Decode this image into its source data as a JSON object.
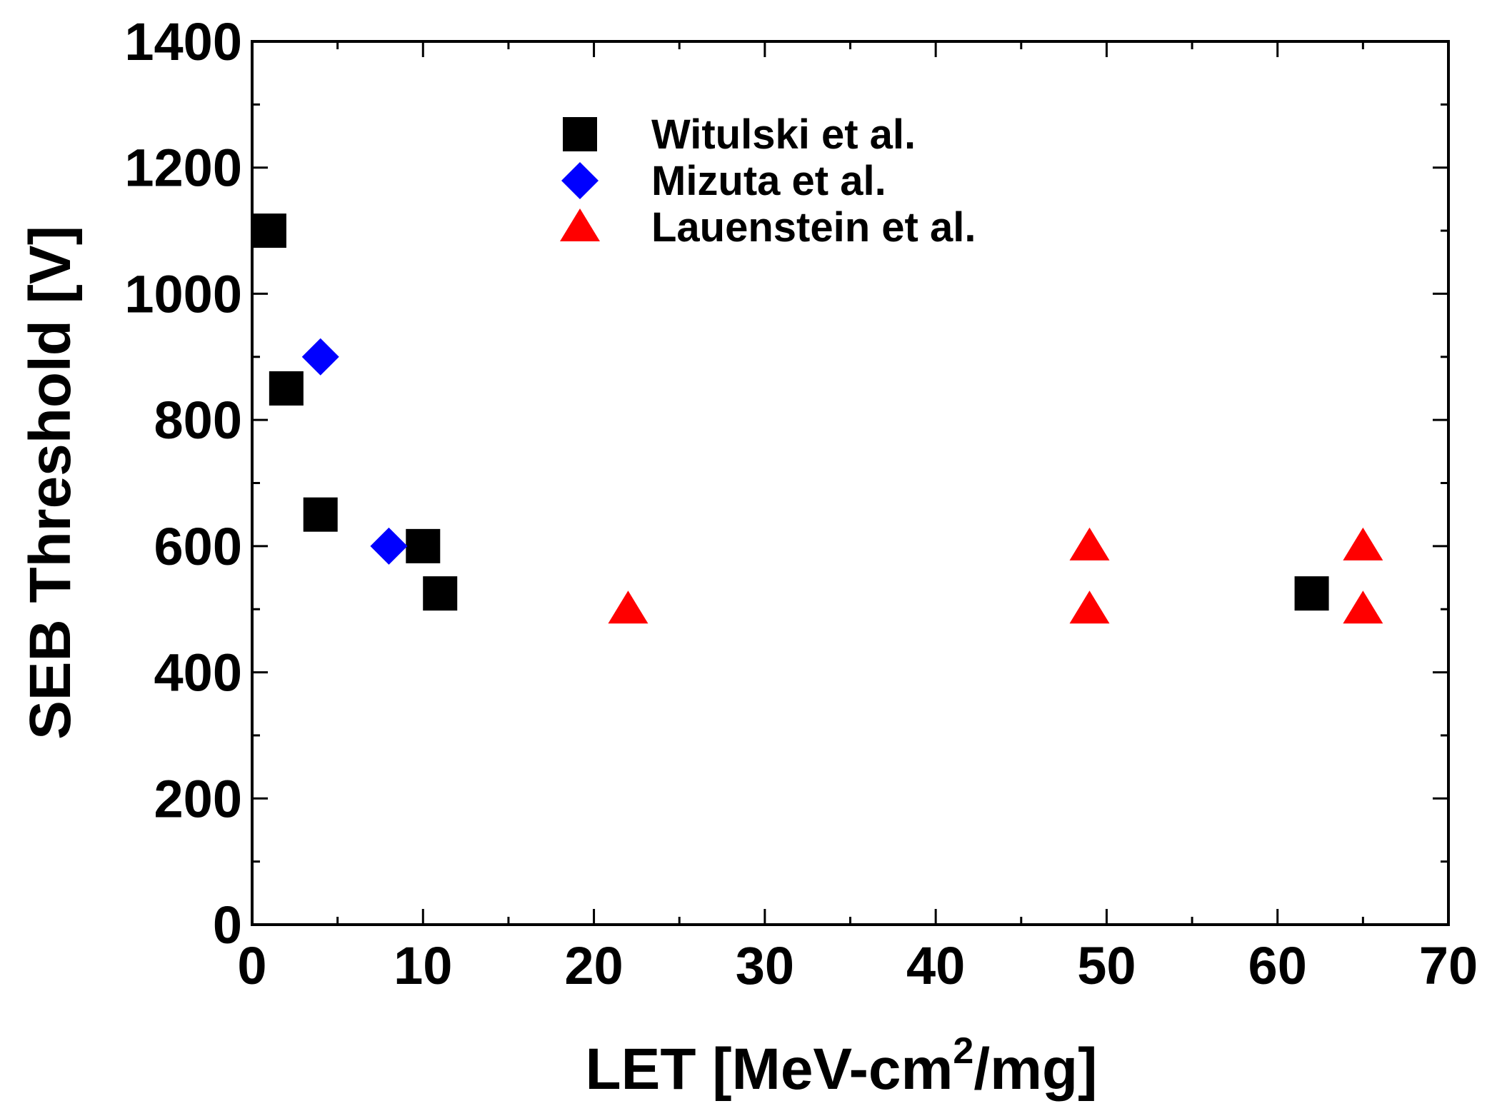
{
  "chart_data": {
    "type": "scatter",
    "title": "",
    "xlabel": "LET [MeV-cm",
    "xlabel_sup": "2",
    "xlabel_tail": "/mg]",
    "ylabel": "SEB Threshold [V]",
    "xlim": [
      0,
      70
    ],
    "ylim": [
      0,
      1400
    ],
    "x_ticks": [
      0,
      10,
      20,
      30,
      40,
      50,
      60,
      70
    ],
    "y_ticks": [
      0,
      200,
      400,
      600,
      800,
      1000,
      1200,
      1400
    ],
    "x_tick_labels": [
      "0",
      "10",
      "20",
      "30",
      "40",
      "50",
      "60",
      "70"
    ],
    "y_tick_labels": [
      "0",
      "200",
      "400",
      "600",
      "800",
      "1000",
      "1200",
      "1400"
    ],
    "x_minor_ticks": [
      5,
      15,
      25,
      35,
      45,
      55,
      65
    ],
    "y_minor_ticks": [
      100,
      300,
      500,
      700,
      900,
      1100,
      1300
    ],
    "grid": false,
    "legend_position": "top-center",
    "series": [
      {
        "name": "Witulski et al.",
        "marker": "square",
        "color": "#000000",
        "points": [
          {
            "x": 1,
            "y": 1100
          },
          {
            "x": 2,
            "y": 850
          },
          {
            "x": 4,
            "y": 650
          },
          {
            "x": 10,
            "y": 600
          },
          {
            "x": 11,
            "y": 525
          },
          {
            "x": 62,
            "y": 525
          }
        ]
      },
      {
        "name": "Mizuta et al.",
        "marker": "diamond",
        "color": "#0000ff",
        "points": [
          {
            "x": 4,
            "y": 900
          },
          {
            "x": 8,
            "y": 600
          }
        ]
      },
      {
        "name": "Lauenstein et al.",
        "marker": "triangle",
        "color": "#ff0000",
        "points": [
          {
            "x": 22,
            "y": 500
          },
          {
            "x": 49,
            "y": 600
          },
          {
            "x": 49,
            "y": 500
          },
          {
            "x": 65,
            "y": 600
          },
          {
            "x": 65,
            "y": 500
          }
        ]
      }
    ]
  }
}
